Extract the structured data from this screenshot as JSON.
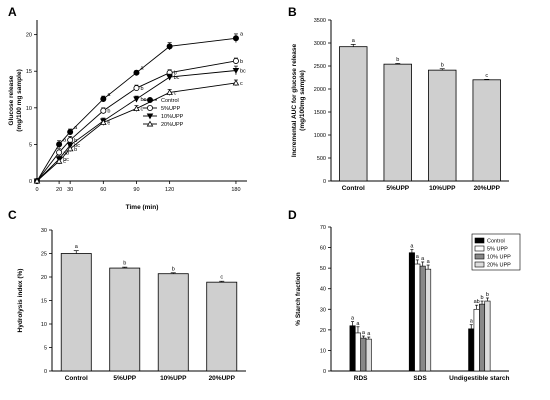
{
  "chart_data": [
    {
      "panel": "A",
      "type": "line",
      "xlabel": "Time (min)",
      "ylabel": "Glucose release\n(mg/100 mg sample)",
      "xlim": [
        0,
        190
      ],
      "ylim": [
        0,
        22
      ],
      "xticks": [
        0,
        20,
        30,
        60,
        90,
        120,
        180
      ],
      "yticks": [
        0,
        5,
        10,
        15,
        20
      ],
      "legend_position": "center-right",
      "x": [
        0,
        20,
        30,
        60,
        90,
        120,
        180
      ],
      "series": [
        {
          "name": "Control",
          "marker": "filled-circle",
          "values": [
            0,
            5.0,
            6.7,
            11.2,
            14.8,
            18.4,
            19.5
          ],
          "err": [
            0,
            0.5,
            0.4,
            0.4,
            0.3,
            0.5,
            0.6
          ],
          "sig": [
            "",
            "a",
            "a",
            "a",
            "a",
            "",
            "a"
          ]
        },
        {
          "name": "5%UPP",
          "marker": "open-circle",
          "values": [
            0,
            3.9,
            5.6,
            9.6,
            12.7,
            14.8,
            16.4
          ],
          "err": [
            0,
            0.5,
            0.5,
            0.4,
            0.4,
            0.4,
            0.4
          ],
          "sig": [
            "",
            "ab",
            "b",
            "b",
            "b",
            "b",
            "b"
          ]
        },
        {
          "name": "10%UPP",
          "marker": "filled-triangle-down",
          "values": [
            0,
            3.0,
            4.9,
            8.2,
            11.2,
            14.2,
            15.1
          ],
          "err": [
            0,
            0.4,
            0.4,
            0.4,
            0.4,
            0.4,
            0.6
          ],
          "sig": [
            "",
            "bc",
            "bc",
            "c",
            "bc",
            "bc",
            "bc"
          ]
        },
        {
          "name": "20%UPP",
          "marker": "open-triangle-up",
          "values": [
            0,
            2.7,
            4.4,
            8.0,
            9.9,
            12.1,
            13.4
          ],
          "err": [
            0,
            0.4,
            0.4,
            0.4,
            0.4,
            0.4,
            0.4
          ],
          "sig": [
            "",
            "c",
            "b",
            "c",
            "c",
            "c",
            "c"
          ]
        }
      ]
    },
    {
      "panel": "B",
      "type": "bar",
      "ylabel": "Incremental AUC for glucose release\n(mg/100mg sample)",
      "ylim": [
        0,
        3500
      ],
      "yticks": [
        0,
        500,
        1000,
        1500,
        2000,
        2500,
        3000,
        3500
      ],
      "categories": [
        "Control",
        "5%UPP",
        "10%UPP",
        "20%UPP"
      ],
      "values": [
        2920,
        2540,
        2410,
        2200
      ],
      "err": [
        50,
        15,
        30,
        10
      ],
      "sig": [
        "a",
        "b",
        "b",
        "c"
      ]
    },
    {
      "panel": "C",
      "type": "bar",
      "ylabel": "Hydrolysis index (%)",
      "ylim": [
        0,
        30
      ],
      "yticks": [
        0,
        5,
        10,
        15,
        20,
        25,
        30
      ],
      "categories": [
        "Control",
        "5%UPP",
        "10%UPP",
        "20%UPP"
      ],
      "values": [
        25.0,
        21.9,
        20.7,
        18.9
      ],
      "err": [
        0.6,
        0.2,
        0.2,
        0.2
      ],
      "sig": [
        "a",
        "b",
        "b",
        "c"
      ]
    },
    {
      "panel": "D",
      "type": "bar",
      "ylabel": "% Starch fraction",
      "ylim": [
        0,
        70
      ],
      "yticks": [
        0,
        10,
        20,
        30,
        40,
        50,
        60,
        70
      ],
      "categories": [
        "RDS",
        "SDS",
        "Undigestible starch"
      ],
      "legend_position": "top-right",
      "series": [
        {
          "name": "Control",
          "color": "#000000",
          "values": [
            22.0,
            57.5,
            20.5
          ],
          "err": [
            2.0,
            1.5,
            2.0
          ],
          "sig": [
            "a",
            "a",
            "a"
          ]
        },
        {
          "name": "5% UPP",
          "color": "#ffffff",
          "values": [
            18.5,
            52.0,
            30.0
          ],
          "err": [
            3.0,
            2.0,
            2.0
          ],
          "sig": [
            "a",
            "a",
            "ab"
          ]
        },
        {
          "name": "10% UPP",
          "color": "#888888",
          "values": [
            16.0,
            51.0,
            32.5
          ],
          "err": [
            1.0,
            2.0,
            1.5
          ],
          "sig": [
            "a",
            "a",
            "b"
          ]
        },
        {
          "name": "20% UPP",
          "color": "#dddddd",
          "values": [
            15.5,
            49.5,
            34.0
          ],
          "err": [
            1.0,
            2.0,
            1.5
          ],
          "sig": [
            "a",
            "a",
            "b"
          ]
        }
      ]
    }
  ]
}
